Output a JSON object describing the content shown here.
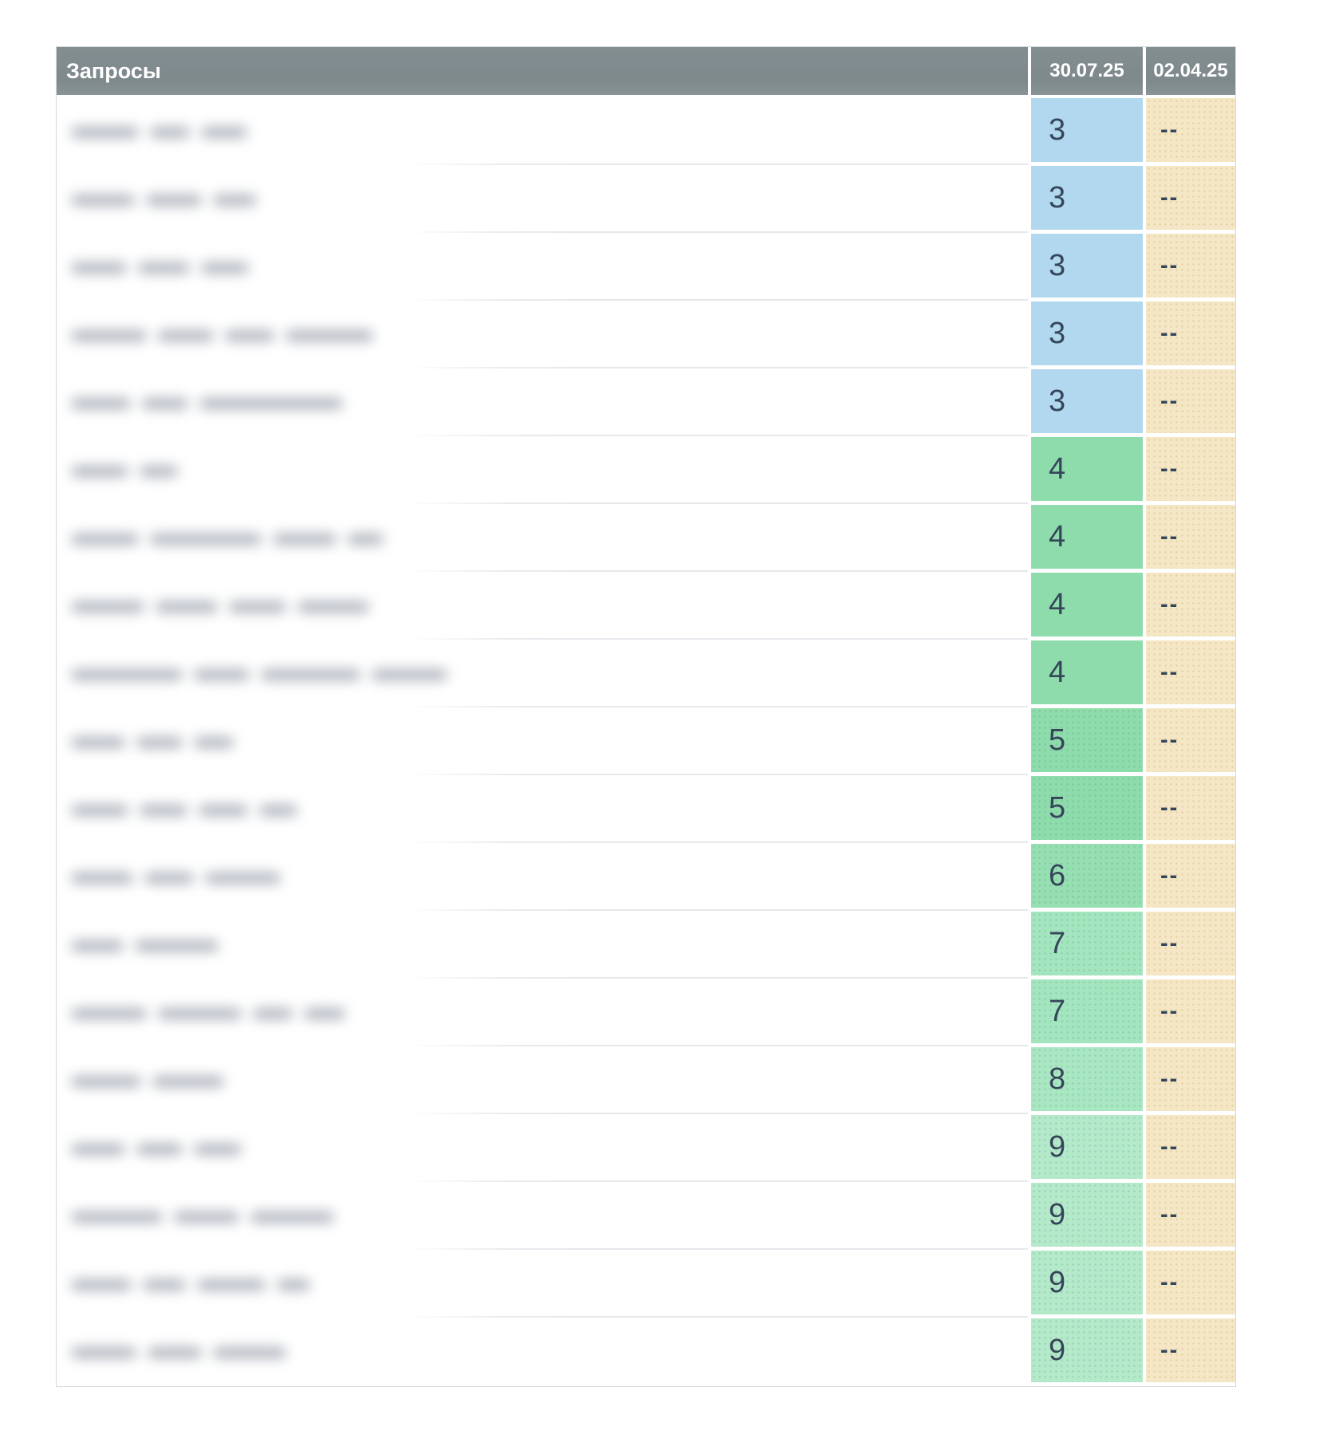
{
  "table": {
    "header": {
      "queries_label": "Запросы",
      "date_current": "30.07.25",
      "date_previous": "02.04.25"
    },
    "no_position_marker": "--",
    "colors": {
      "header_bg": "#7e898c",
      "header_text": "#ffffff",
      "value_text": "#36465a",
      "top3_bg": "#b1d8ee",
      "no_position_bg": "#f5e7c5",
      "row_separator": "#e6e8ec",
      "table_border": "#d5dadc"
    },
    "rows": [
      {
        "query_redacted": true,
        "redacted_segments": [
          85,
          50,
          58
        ],
        "position": "3",
        "previous": "--",
        "cell_bg": "#b1d8ee",
        "dotted": false
      },
      {
        "query_redacted": true,
        "redacted_segments": [
          80,
          70,
          55
        ],
        "position": "3",
        "previous": "--",
        "cell_bg": "#b1d8ee",
        "dotted": false
      },
      {
        "query_redacted": true,
        "redacted_segments": [
          70,
          65,
          60
        ],
        "position": "3",
        "previous": "--",
        "cell_bg": "#b1d8ee",
        "dotted": false
      },
      {
        "query_redacted": true,
        "redacted_segments": [
          95,
          70,
          62,
          110
        ],
        "position": "3",
        "previous": "--",
        "cell_bg": "#b1d8ee",
        "dotted": false
      },
      {
        "query_redacted": true,
        "redacted_segments": [
          75,
          58,
          180
        ],
        "position": "3",
        "previous": "--",
        "cell_bg": "#b1d8ee",
        "dotted": false
      },
      {
        "query_redacted": true,
        "redacted_segments": [
          72,
          48
        ],
        "position": "4",
        "previous": "--",
        "cell_bg": "#8edcab",
        "dotted": false
      },
      {
        "query_redacted": true,
        "redacted_segments": [
          85,
          140,
          80,
          45
        ],
        "position": "4",
        "previous": "--",
        "cell_bg": "#8edcab",
        "dotted": false
      },
      {
        "query_redacted": true,
        "redacted_segments": [
          92,
          78,
          72,
          90
        ],
        "position": "4",
        "previous": "--",
        "cell_bg": "#8edcab",
        "dotted": false
      },
      {
        "query_redacted": true,
        "redacted_segments": [
          140,
          70,
          125,
          95
        ],
        "position": "4",
        "previous": "--",
        "cell_bg": "#8edcab",
        "dotted": false
      },
      {
        "query_redacted": true,
        "redacted_segments": [
          68,
          58,
          50
        ],
        "position": "5",
        "previous": "--",
        "cell_bg": "#8edcab",
        "dotted": true
      },
      {
        "query_redacted": true,
        "redacted_segments": [
          72,
          60,
          62,
          48
        ],
        "position": "5",
        "previous": "--",
        "cell_bg": "#8edcab",
        "dotted": true
      },
      {
        "query_redacted": true,
        "redacted_segments": [
          78,
          62,
          95
        ],
        "position": "6",
        "previous": "--",
        "cell_bg": "#96dfb2",
        "dotted": true
      },
      {
        "query_redacted": true,
        "redacted_segments": [
          66,
          105
        ],
        "position": "7",
        "previous": "--",
        "cell_bg": "#a3e5be",
        "dotted": true
      },
      {
        "query_redacted": true,
        "redacted_segments": [
          95,
          105,
          50,
          52
        ],
        "position": "7",
        "previous": "--",
        "cell_bg": "#a3e5be",
        "dotted": true
      },
      {
        "query_redacted": true,
        "redacted_segments": [
          88,
          90
        ],
        "position": "8",
        "previous": "--",
        "cell_bg": "#a9e7c2",
        "dotted": true
      },
      {
        "query_redacted": true,
        "redacted_segments": [
          68,
          58,
          60
        ],
        "position": "9",
        "previous": "--",
        "cell_bg": "#b4e9ca",
        "dotted": true
      },
      {
        "query_redacted": true,
        "redacted_segments": [
          115,
          82,
          105
        ],
        "position": "9",
        "previous": "--",
        "cell_bg": "#b4e9ca",
        "dotted": true
      },
      {
        "query_redacted": true,
        "redacted_segments": [
          76,
          54,
          86,
          42
        ],
        "position": "9",
        "previous": "--",
        "cell_bg": "#b4e9ca",
        "dotted": true
      },
      {
        "query_redacted": true,
        "redacted_segments": [
          82,
          68,
          92
        ],
        "position": "9",
        "previous": "--",
        "cell_bg": "#b4e9ca",
        "dotted": true
      }
    ]
  }
}
